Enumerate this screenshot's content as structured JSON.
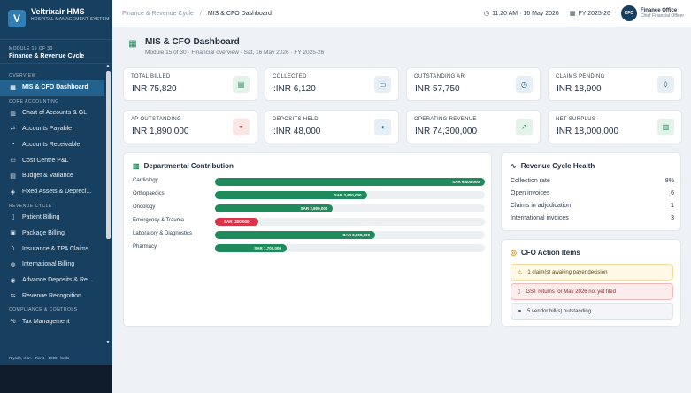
{
  "app": {
    "name": "Veltrixair HMS",
    "subtitle": "HOSPITAL MANAGEMENT SYSTEM",
    "logo_letter": "V"
  },
  "sidebar": {
    "module_label": "MODULE 15 OF 30",
    "module_name": "Finance & Revenue Cycle",
    "sections": [
      {
        "title": "OVERVIEW",
        "items": [
          {
            "label": "MIS & CFO Dashboard",
            "icon": "grid-icon",
            "active": true
          }
        ]
      },
      {
        "title": "CORE ACCOUNTING",
        "items": [
          {
            "label": "Chart of Accounts & GL",
            "icon": "book-icon"
          },
          {
            "label": "Accounts Payable",
            "icon": "transfer-icon"
          },
          {
            "label": "Accounts Receivable",
            "icon": "receive-icon"
          },
          {
            "label": "Cost Centre P&L",
            "icon": "briefcase-icon"
          },
          {
            "label": "Budget & Variance",
            "icon": "calculator-icon"
          },
          {
            "label": "Fixed Assets & Depreci...",
            "icon": "layers-icon"
          }
        ]
      },
      {
        "title": "REVENUE CYCLE",
        "items": [
          {
            "label": "Patient Billing",
            "icon": "document-icon"
          },
          {
            "label": "Package Billing",
            "icon": "package-icon"
          },
          {
            "label": "Insurance & TPA Claims",
            "icon": "shield-icon"
          },
          {
            "label": "International Billing",
            "icon": "globe-icon"
          },
          {
            "label": "Advance Deposits & Re...",
            "icon": "deposit-icon"
          },
          {
            "label": "Revenue Recognition",
            "icon": "arrows-icon"
          }
        ]
      },
      {
        "title": "COMPLIANCE & CONTROLS",
        "items": [
          {
            "label": "Tax Management",
            "icon": "percent-icon"
          }
        ]
      }
    ],
    "footer": "Riyadh, KSA · Tier 1 · 1000+ beds"
  },
  "topbar": {
    "breadcrumb_parent": "Finance & Revenue Cycle",
    "breadcrumb_sep": "/",
    "breadcrumb_current": "MIS & CFO Dashboard",
    "time": "11:20 AM · 16 May 2026",
    "fiscal_year": "FY 2025-26",
    "user_initials": "CFO",
    "user_name": "Finance Office",
    "user_role": "Chief Financial Officer"
  },
  "page": {
    "title": "MIS & CFO Dashboard",
    "subtitle": "Module 15 of 30 · Financial overview · Sat, 16 May 2026 · FY 2025-26"
  },
  "kpis": [
    {
      "label": "TOTAL BILLED",
      "value": "INR 75,820",
      "icon": "billing-icon",
      "tone": "green"
    },
    {
      "label": "COLLECTED",
      "value": ":INR 6,120",
      "icon": "wallet-icon",
      "tone": "blue"
    },
    {
      "label": "OUTSTANDING AR",
      "value": "INR 57,750",
      "icon": "clock-icon",
      "tone": "blue"
    },
    {
      "label": "CLAIMS PENDING",
      "value": "INR 18,900",
      "icon": "shield-icon",
      "tone": "blue"
    },
    {
      "label": "AP OUTSTANDING",
      "value": "INR 1,890,000",
      "icon": "handshake-icon",
      "tone": "red"
    },
    {
      "label": "DEPOSITS HELD",
      "value": ":INR 48,000",
      "icon": "piggy-bank-icon",
      "tone": "blue"
    },
    {
      "label": "OPERATING REVENUE",
      "value": "INR 74,300,000",
      "icon": "trend-up-icon",
      "tone": "green"
    },
    {
      "label": "NET SURPLUS",
      "value": "INR 18,000,000",
      "icon": "bar-chart-icon",
      "tone": "green"
    }
  ],
  "departmental": {
    "title": "Departmental Contribution",
    "rows": [
      {
        "name": "Cardiology",
        "value": 6400000,
        "label": "SAR 6,400,000"
      },
      {
        "name": "Orthopaedics",
        "value": 3600000,
        "label": "SAR 3,600,000"
      },
      {
        "name": "Oncology",
        "value": 2800000,
        "label": "SAR 2,800,000"
      },
      {
        "name": "Emergency & Trauma",
        "value": -300000,
        "label": "SAR -300,000"
      },
      {
        "name": "Laboratory & Diagnostics",
        "value": 3800000,
        "label": "SAR 3,800,000"
      },
      {
        "name": "Pharmacy",
        "value": 1700000,
        "label": "SAR 1,700,000"
      }
    ],
    "max_value": 6400000
  },
  "revenue_cycle": {
    "title": "Revenue Cycle Health",
    "rows": [
      {
        "label": "Collection rate",
        "value": "8%"
      },
      {
        "label": "Open invoices",
        "value": "6"
      },
      {
        "label": "Claims in adjudication",
        "value": "1"
      },
      {
        "label": "International invoices",
        "value": "3"
      }
    ]
  },
  "actions": {
    "title": "CFO Action Items",
    "items": [
      {
        "text": "1 claim(s) awaiting payer decision",
        "tone": "warn",
        "icon": "warning-icon"
      },
      {
        "text": "GST returns for May 2026 not yet filed",
        "tone": "err",
        "icon": "document-alert-icon"
      },
      {
        "text": "5 vendor bill(s) outstanding",
        "tone": "info",
        "icon": "handshake-icon"
      }
    ]
  }
}
